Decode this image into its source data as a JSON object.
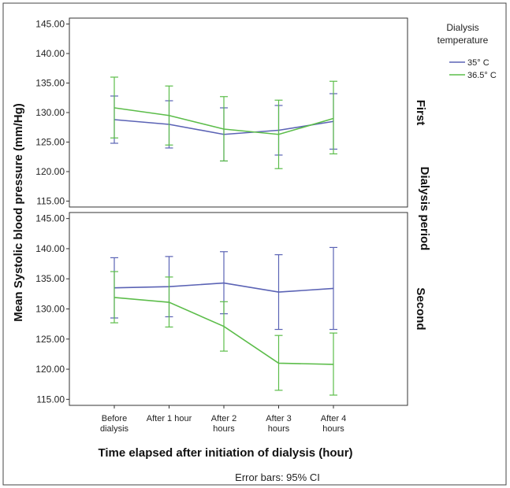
{
  "chart_data": {
    "type": "line",
    "ylabel": "Mean Systolic blood pressure (mm/Hg)",
    "xlabel": "Time elapsed after initiation of dialysis (hour)",
    "facet_label": "Dialysis period",
    "footnote": "Error bars: 95% CI",
    "legend": {
      "title": [
        "Dialysis",
        "temperature"
      ],
      "placement": "top-right"
    },
    "categories": [
      [
        "Before",
        "dialysis"
      ],
      [
        "After 1 hour"
      ],
      [
        "After 2",
        "hours"
      ],
      [
        "After 3",
        "hours"
      ],
      [
        "After 4",
        "hours"
      ]
    ],
    "ylim": [
      114,
      146
    ],
    "yticks": [
      "115.00",
      "120.00",
      "125.00",
      "130.00",
      "135.00",
      "140.00",
      "145.00"
    ],
    "series_styles": [
      {
        "name": "35° C",
        "color": "#5b63b5"
      },
      {
        "name": "36.5° C",
        "color": "#5cbd4a"
      }
    ],
    "panels": [
      {
        "label": "First",
        "series": [
          {
            "name": "35° C",
            "values": [
              128.8,
              128.0,
              126.3,
              127.0,
              128.5
            ],
            "lower": [
              124.8,
              124.0,
              121.8,
              122.8,
              123.8
            ],
            "upper": [
              132.8,
              132.0,
              130.8,
              131.2,
              133.2
            ]
          },
          {
            "name": "36.5° C",
            "values": [
              130.8,
              129.5,
              127.2,
              126.3,
              129.0
            ],
            "lower": [
              125.7,
              124.5,
              121.8,
              120.5,
              123.0
            ],
            "upper": [
              136.0,
              134.5,
              132.7,
              132.1,
              135.3
            ]
          }
        ]
      },
      {
        "label": "Second",
        "series": [
          {
            "name": "35° C",
            "values": [
              133.5,
              133.7,
              134.3,
              132.8,
              133.4
            ],
            "lower": [
              128.5,
              128.7,
              129.2,
              126.6,
              126.6
            ],
            "upper": [
              138.5,
              138.7,
              139.5,
              139.0,
              140.2
            ]
          },
          {
            "name": "36.5° C",
            "values": [
              131.9,
              131.1,
              127.1,
              121.0,
              120.8
            ],
            "lower": [
              127.7,
              127.0,
              123.0,
              116.5,
              115.7
            ],
            "upper": [
              136.2,
              135.3,
              131.2,
              125.6,
              126.0
            ]
          }
        ]
      }
    ]
  }
}
